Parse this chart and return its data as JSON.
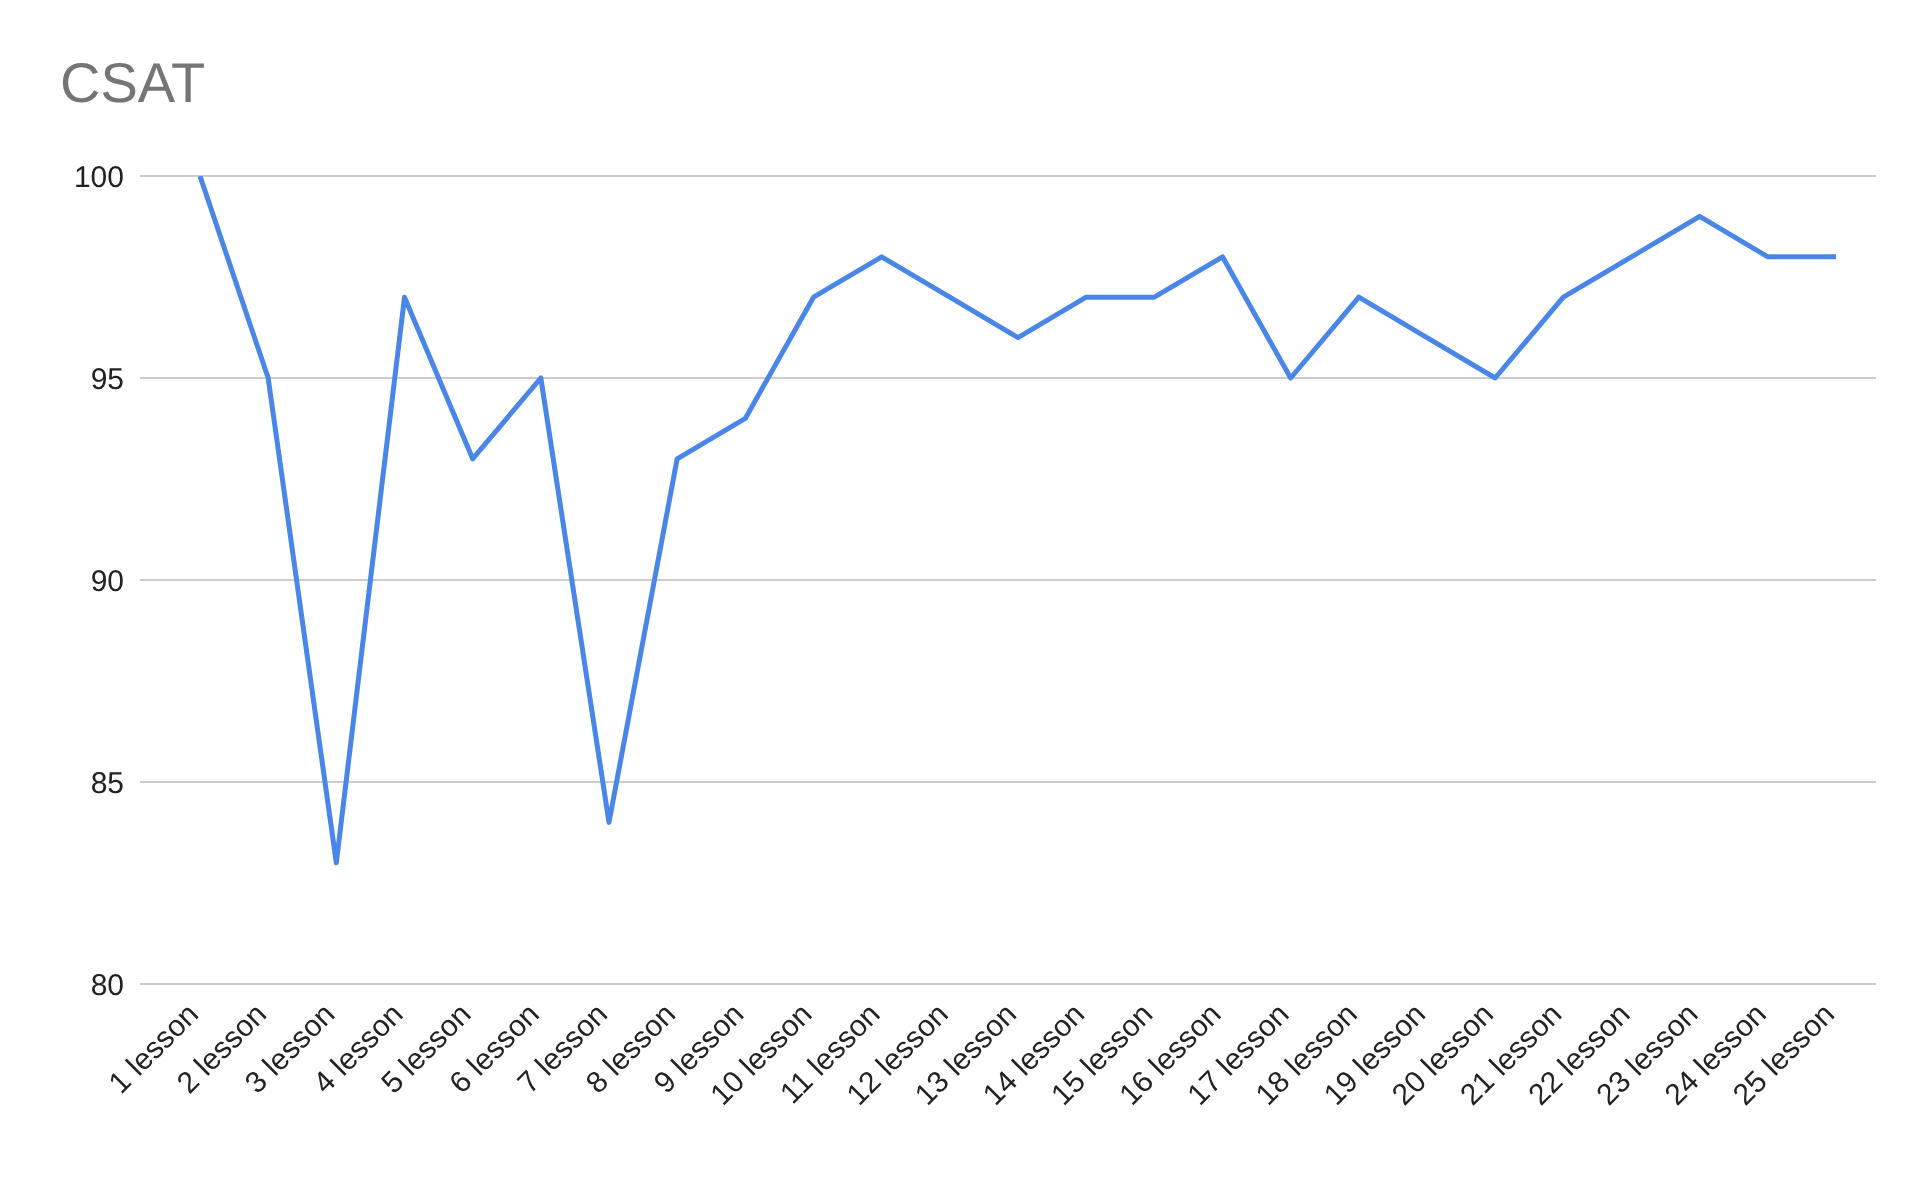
{
  "chart_data": {
    "type": "line",
    "title": "CSAT",
    "categories": [
      "1 lesson",
      "2 lesson",
      "3 lesson",
      "4 lesson",
      "5 lesson",
      "6 lesson",
      "7 lesson",
      "8 lesson",
      "9 lesson",
      "10 lesson",
      "11 lesson",
      "12 lesson",
      "13 lesson",
      "14 lesson",
      "15 lesson",
      "16 lesson",
      "17 lesson",
      "18 lesson",
      "19 lesson",
      "20 lesson",
      "21 lesson",
      "22 lesson",
      "23 lesson",
      "24 lesson",
      "25 lesson"
    ],
    "series": [
      {
        "color": "#4a86e8",
        "values": [
          100,
          95,
          83,
          97,
          93,
          95,
          84,
          93,
          94,
          97,
          98,
          97,
          96,
          97,
          97,
          98,
          95,
          97,
          96,
          95,
          97,
          98,
          99,
          98,
          98
        ]
      }
    ],
    "ylim": [
      80,
      100
    ],
    "yticks": [
      80,
      85,
      90,
      95,
      100
    ],
    "grid": "y",
    "legend": false,
    "marker": "none",
    "line_style": "solid"
  }
}
